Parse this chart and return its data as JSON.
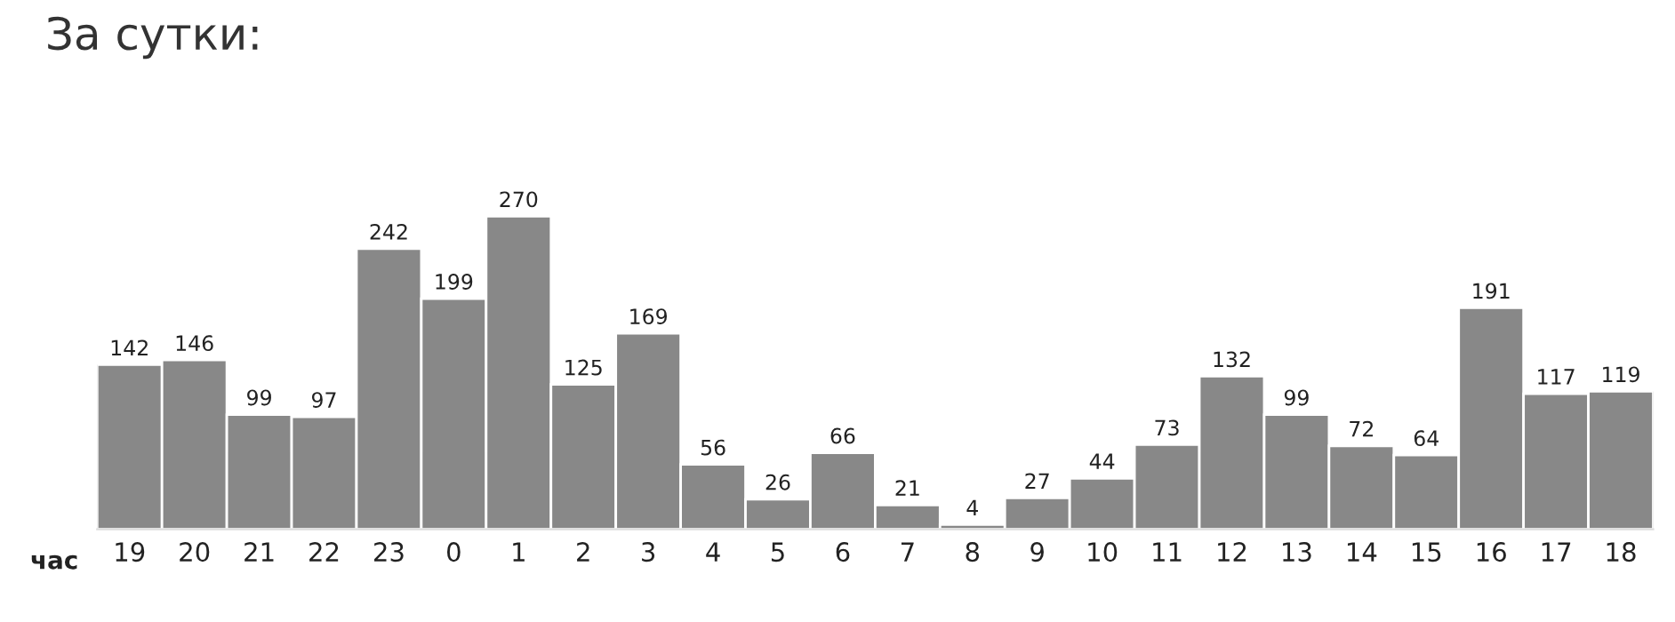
{
  "chart_data": {
    "type": "bar",
    "title": "За сутки:",
    "xlabel": "час",
    "categories": [
      "19",
      "20",
      "21",
      "22",
      "23",
      "0",
      "1",
      "2",
      "3",
      "4",
      "5",
      "6",
      "7",
      "8",
      "9",
      "10",
      "11",
      "12",
      "13",
      "14",
      "15",
      "16",
      "17",
      "18"
    ],
    "values": [
      142,
      146,
      99,
      97,
      242,
      199,
      270,
      125,
      169,
      56,
      26,
      66,
      21,
      4,
      27,
      44,
      73,
      132,
      99,
      72,
      64,
      191,
      117,
      119
    ],
    "color": "#888888",
    "data_labels": true,
    "grid": false,
    "legend": false
  }
}
